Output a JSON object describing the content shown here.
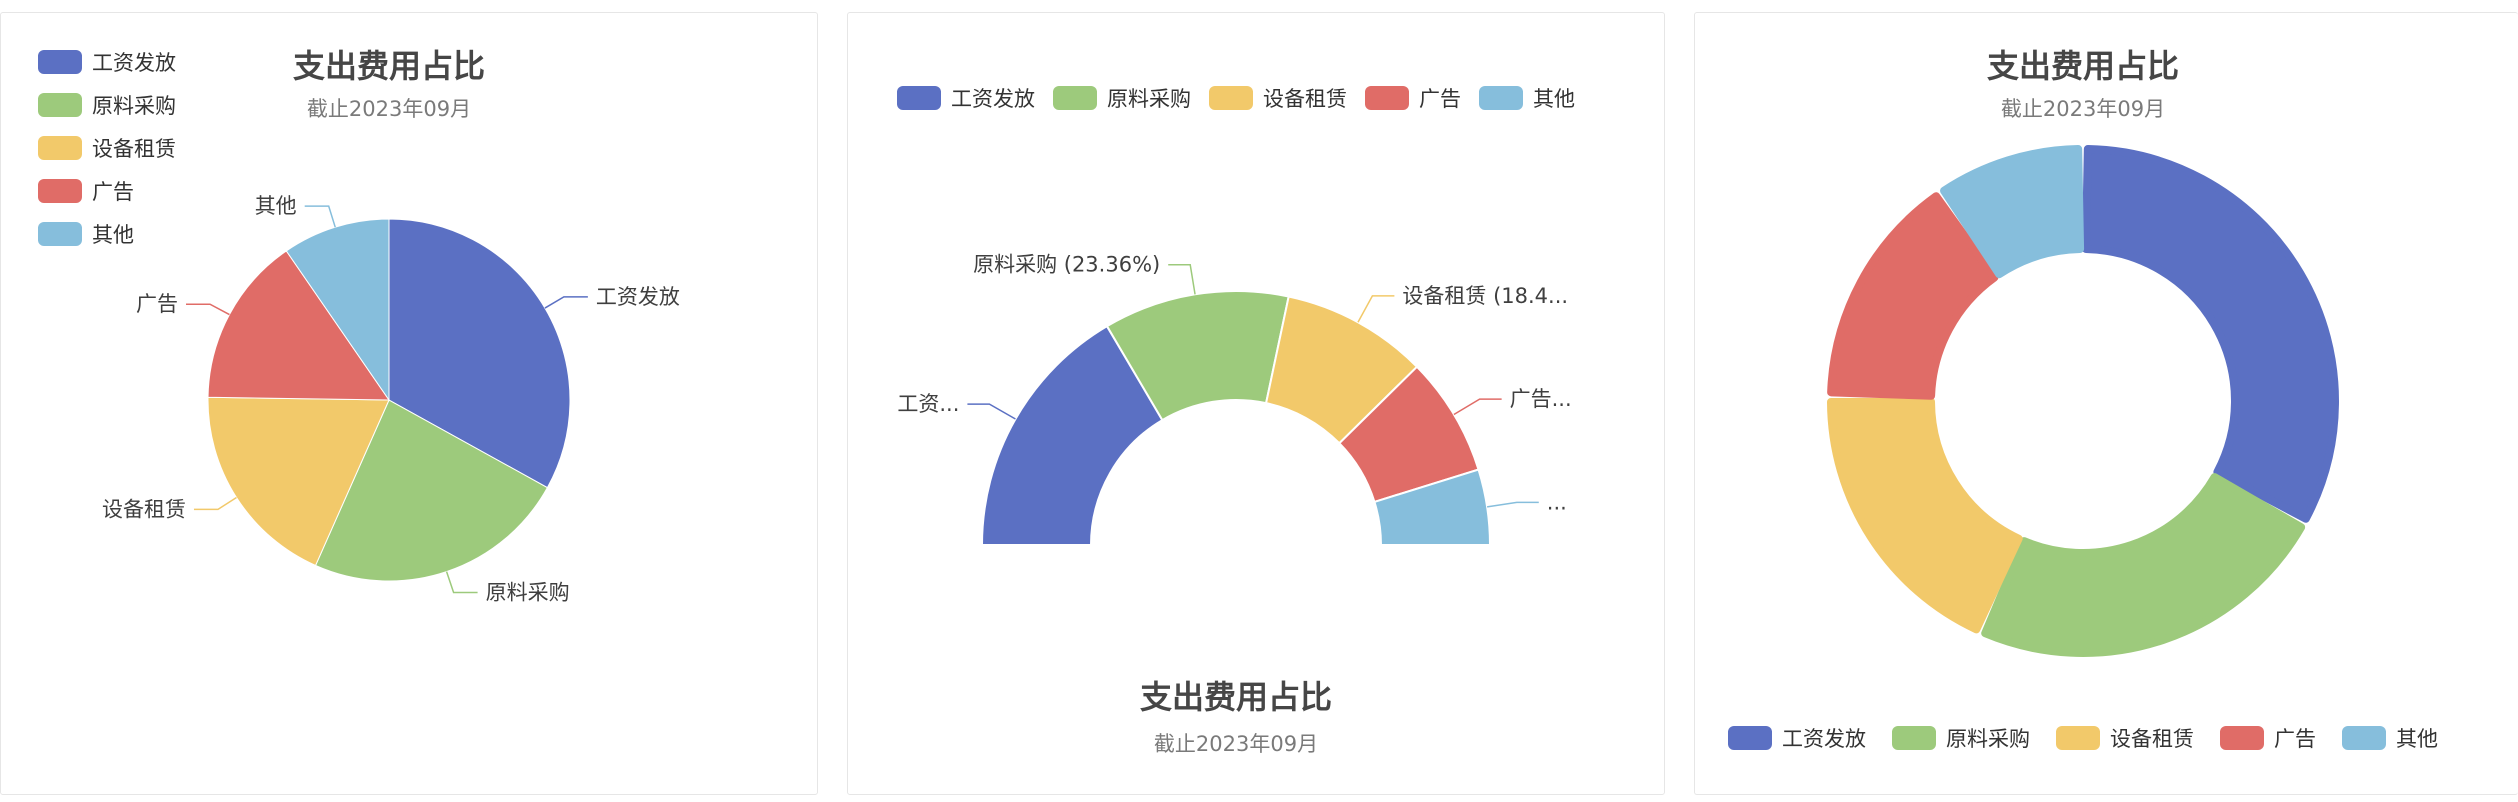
{
  "colors": {
    "工资发放": "#5b70c3",
    "原料采购": "#9dca7c",
    "设备租赁": "#f2c96a",
    "广告": "#e06c67",
    "其他": "#86bedc"
  },
  "chart_data": [
    {
      "type": "pie",
      "title": "支出费用占比",
      "subtitle": "截止2023年09月",
      "legend_position": "top-left",
      "categories": [
        "工资发放",
        "原料采购",
        "设备租赁",
        "广告",
        "其他"
      ],
      "values": [
        32.7,
        23.36,
        18.4,
        15.0,
        9.5
      ],
      "labels": [
        "工资发放",
        "原料采购",
        "设备租赁",
        "广告",
        "其他"
      ]
    },
    {
      "type": "pie",
      "variant": "half-donut",
      "title": "支出费用占比",
      "subtitle": "截止2023年09月",
      "legend_position": "top",
      "categories": [
        "工资发放",
        "原料采购",
        "设备租赁",
        "广告",
        "其他"
      ],
      "values": [
        32.7,
        23.36,
        18.4,
        15.0,
        9.5
      ],
      "labels": [
        "工资...",
        "原料采购 (23.36%)",
        "设备租赁 (18.4...",
        "广告...",
        "..."
      ]
    },
    {
      "type": "pie",
      "variant": "donut",
      "title": "支出费用占比",
      "subtitle": "截止2023年09月",
      "legend_position": "bottom",
      "categories": [
        "工资发放",
        "原料采购",
        "设备租赁",
        "广告",
        "其他"
      ],
      "values": [
        32.7,
        23.36,
        18.4,
        15.0,
        9.5
      ]
    }
  ]
}
